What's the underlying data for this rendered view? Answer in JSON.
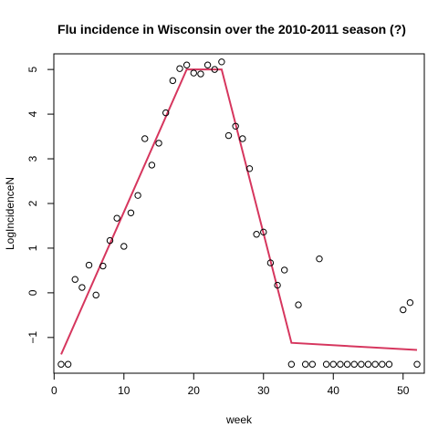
{
  "chart_data": {
    "type": "scatter",
    "title": "Flu incidence in Wisconsin over the 2010-2011 season (?)",
    "xlabel": "week",
    "ylabel": "LogIncidenceN",
    "xlim": [
      -0.04,
      53.04
    ],
    "ylim": [
      -1.8,
      5.35
    ],
    "xticks": [
      0,
      10,
      20,
      30,
      40,
      50
    ],
    "yticks": [
      -1,
      0,
      1,
      2,
      3,
      4,
      5
    ],
    "points": {
      "x": [
        1,
        2,
        3,
        4,
        5,
        6,
        7,
        8,
        9,
        10,
        11,
        12,
        13,
        14,
        15,
        16,
        17,
        18,
        19,
        20,
        21,
        22,
        23,
        24,
        25,
        26,
        27,
        28,
        29,
        30,
        31,
        32,
        33,
        34,
        35,
        36,
        37,
        38,
        39,
        40,
        41,
        42,
        43,
        44,
        45,
        46,
        47,
        48,
        50,
        51,
        52
      ],
      "y": [
        -1.6,
        -1.6,
        0.3,
        0.12,
        0.62,
        -0.05,
        0.6,
        1.17,
        1.67,
        1.04,
        1.79,
        2.18,
        3.45,
        2.86,
        3.35,
        4.03,
        4.75,
        5.02,
        5.1,
        4.92,
        4.9,
        5.1,
        5.0,
        5.17,
        3.52,
        3.73,
        3.45,
        2.78,
        1.31,
        1.36,
        0.67,
        0.17,
        0.51,
        -1.6,
        -0.27,
        -1.6,
        -1.6,
        0.76,
        -1.6,
        -1.6,
        -1.6,
        -1.6,
        -1.6,
        -1.6,
        -1.6,
        -1.6,
        -1.6,
        -1.6,
        -0.38,
        -0.22,
        -1.6
      ]
    },
    "fit_line": {
      "color": "#d6365e",
      "x": [
        1,
        19,
        24,
        34,
        52
      ],
      "y": [
        -1.38,
        5.0,
        5.0,
        -1.12,
        -1.28
      ]
    },
    "point_color": "#000000",
    "grid": false,
    "legend": "none"
  }
}
